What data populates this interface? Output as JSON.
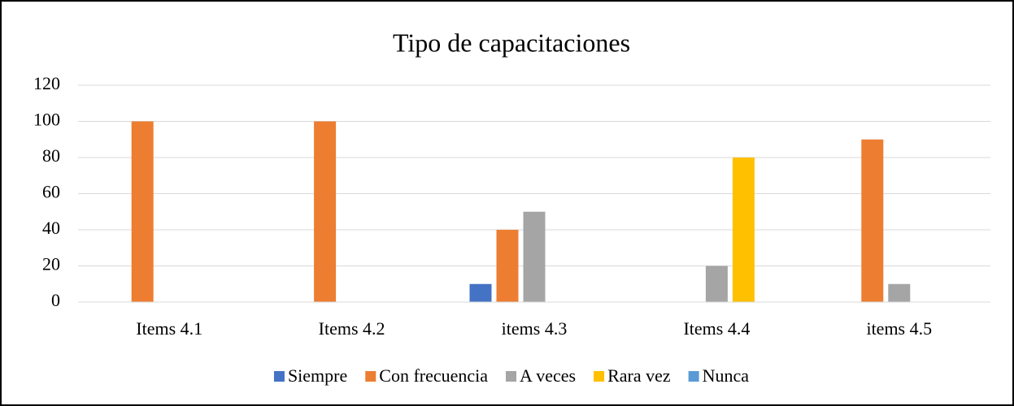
{
  "chart_data": {
    "type": "bar",
    "title": "Tipo de capacitaciones",
    "categories": [
      "Items 4.1",
      "Items 4.2",
      "items 4.3",
      "Items 4.4",
      "items 4.5"
    ],
    "series": [
      {
        "name": "Siempre",
        "color": "#4472c4",
        "values": [
          0,
          0,
          10,
          0,
          0
        ]
      },
      {
        "name": "Con frecuencia",
        "color": "#ed7d31",
        "values": [
          100,
          100,
          40,
          0,
          90
        ]
      },
      {
        "name": "A veces",
        "color": "#a5a5a5",
        "values": [
          0,
          0,
          50,
          20,
          10
        ]
      },
      {
        "name": "Rara vez",
        "color": "#ffc000",
        "values": [
          0,
          0,
          0,
          80,
          0
        ]
      },
      {
        "name": "Nunca",
        "color": "#5b9bd5",
        "values": [
          0,
          0,
          0,
          0,
          0
        ]
      }
    ],
    "ylim": [
      0,
      120
    ],
    "yticks": [
      0,
      20,
      40,
      60,
      80,
      100,
      120
    ],
    "grid": true,
    "legend": "bottom"
  }
}
